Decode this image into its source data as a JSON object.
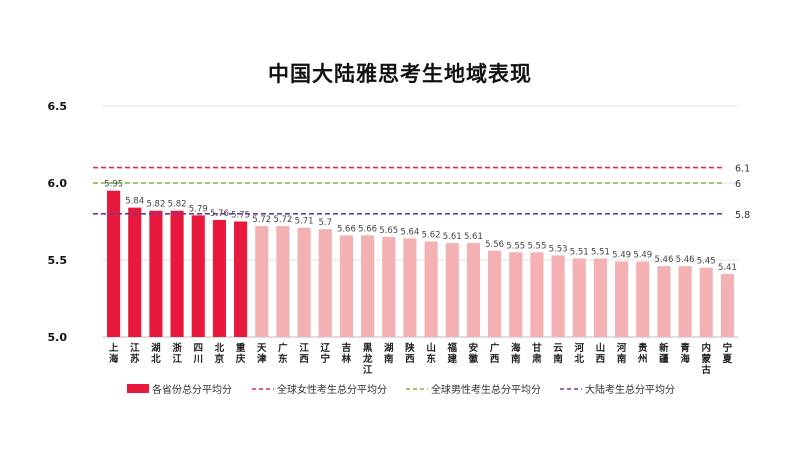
{
  "chart_data": {
    "type": "bar",
    "title": "中国大陆雅思考生地域表现",
    "ylim": [
      5.0,
      6.5
    ],
    "yticks": [
      "5.0",
      "5.5",
      "6.0",
      "6.5"
    ],
    "grid": true,
    "legend_position": "bottom",
    "categories": [
      "上海",
      "江苏",
      "湖北",
      "浙江",
      "四川",
      "北京",
      "重庆",
      "天津",
      "广东",
      "江西",
      "辽宁",
      "吉林",
      "黑龙江",
      "湖南",
      "陕西",
      "山东",
      "福建",
      "安徽",
      "广西",
      "海南",
      "甘肃",
      "云南",
      "河北",
      "山西",
      "河南",
      "贵州",
      "新疆",
      "青海",
      "内蒙古",
      "宁夏"
    ],
    "values": [
      5.95,
      5.84,
      5.82,
      5.82,
      5.79,
      5.76,
      5.75,
      5.72,
      5.72,
      5.71,
      5.7,
      5.66,
      5.66,
      5.65,
      5.64,
      5.62,
      5.61,
      5.61,
      5.56,
      5.55,
      5.55,
      5.53,
      5.51,
      5.51,
      5.49,
      5.49,
      5.46,
      5.46,
      5.45,
      5.41
    ],
    "value_labels": [
      "5.95",
      "5.84",
      "5.82",
      "5.82",
      "5.79",
      "5.76",
      "5.75",
      "5.72",
      "5.72",
      "5.71",
      "5.7",
      "5.66",
      "5.66",
      "5.65",
      "5.64",
      "5.62",
      "5.61",
      "5.61",
      "5.56",
      "5.55",
      "5.55",
      "5.53",
      "5.51",
      "5.51",
      "5.49",
      "5.49",
      "5.46",
      "5.46",
      "5.45",
      "5.41"
    ],
    "highlight_count": 7,
    "bar_series_name": "各省份总分平均分",
    "colors": {
      "highlight": "#e8193c",
      "normal": "#f4b1b3"
    },
    "reference_lines": [
      {
        "name": "全球女性考生总分平均分",
        "value": 6.1,
        "label": "6.1",
        "color": "#d6324e"
      },
      {
        "name": "全球男性考生总分平均分",
        "value": 6.0,
        "label": "6",
        "color": "#7fb239"
      },
      {
        "name": "大陆考生总分平均分",
        "value": 5.8,
        "label": "5.8",
        "color": "#6a3a9a"
      }
    ]
  }
}
